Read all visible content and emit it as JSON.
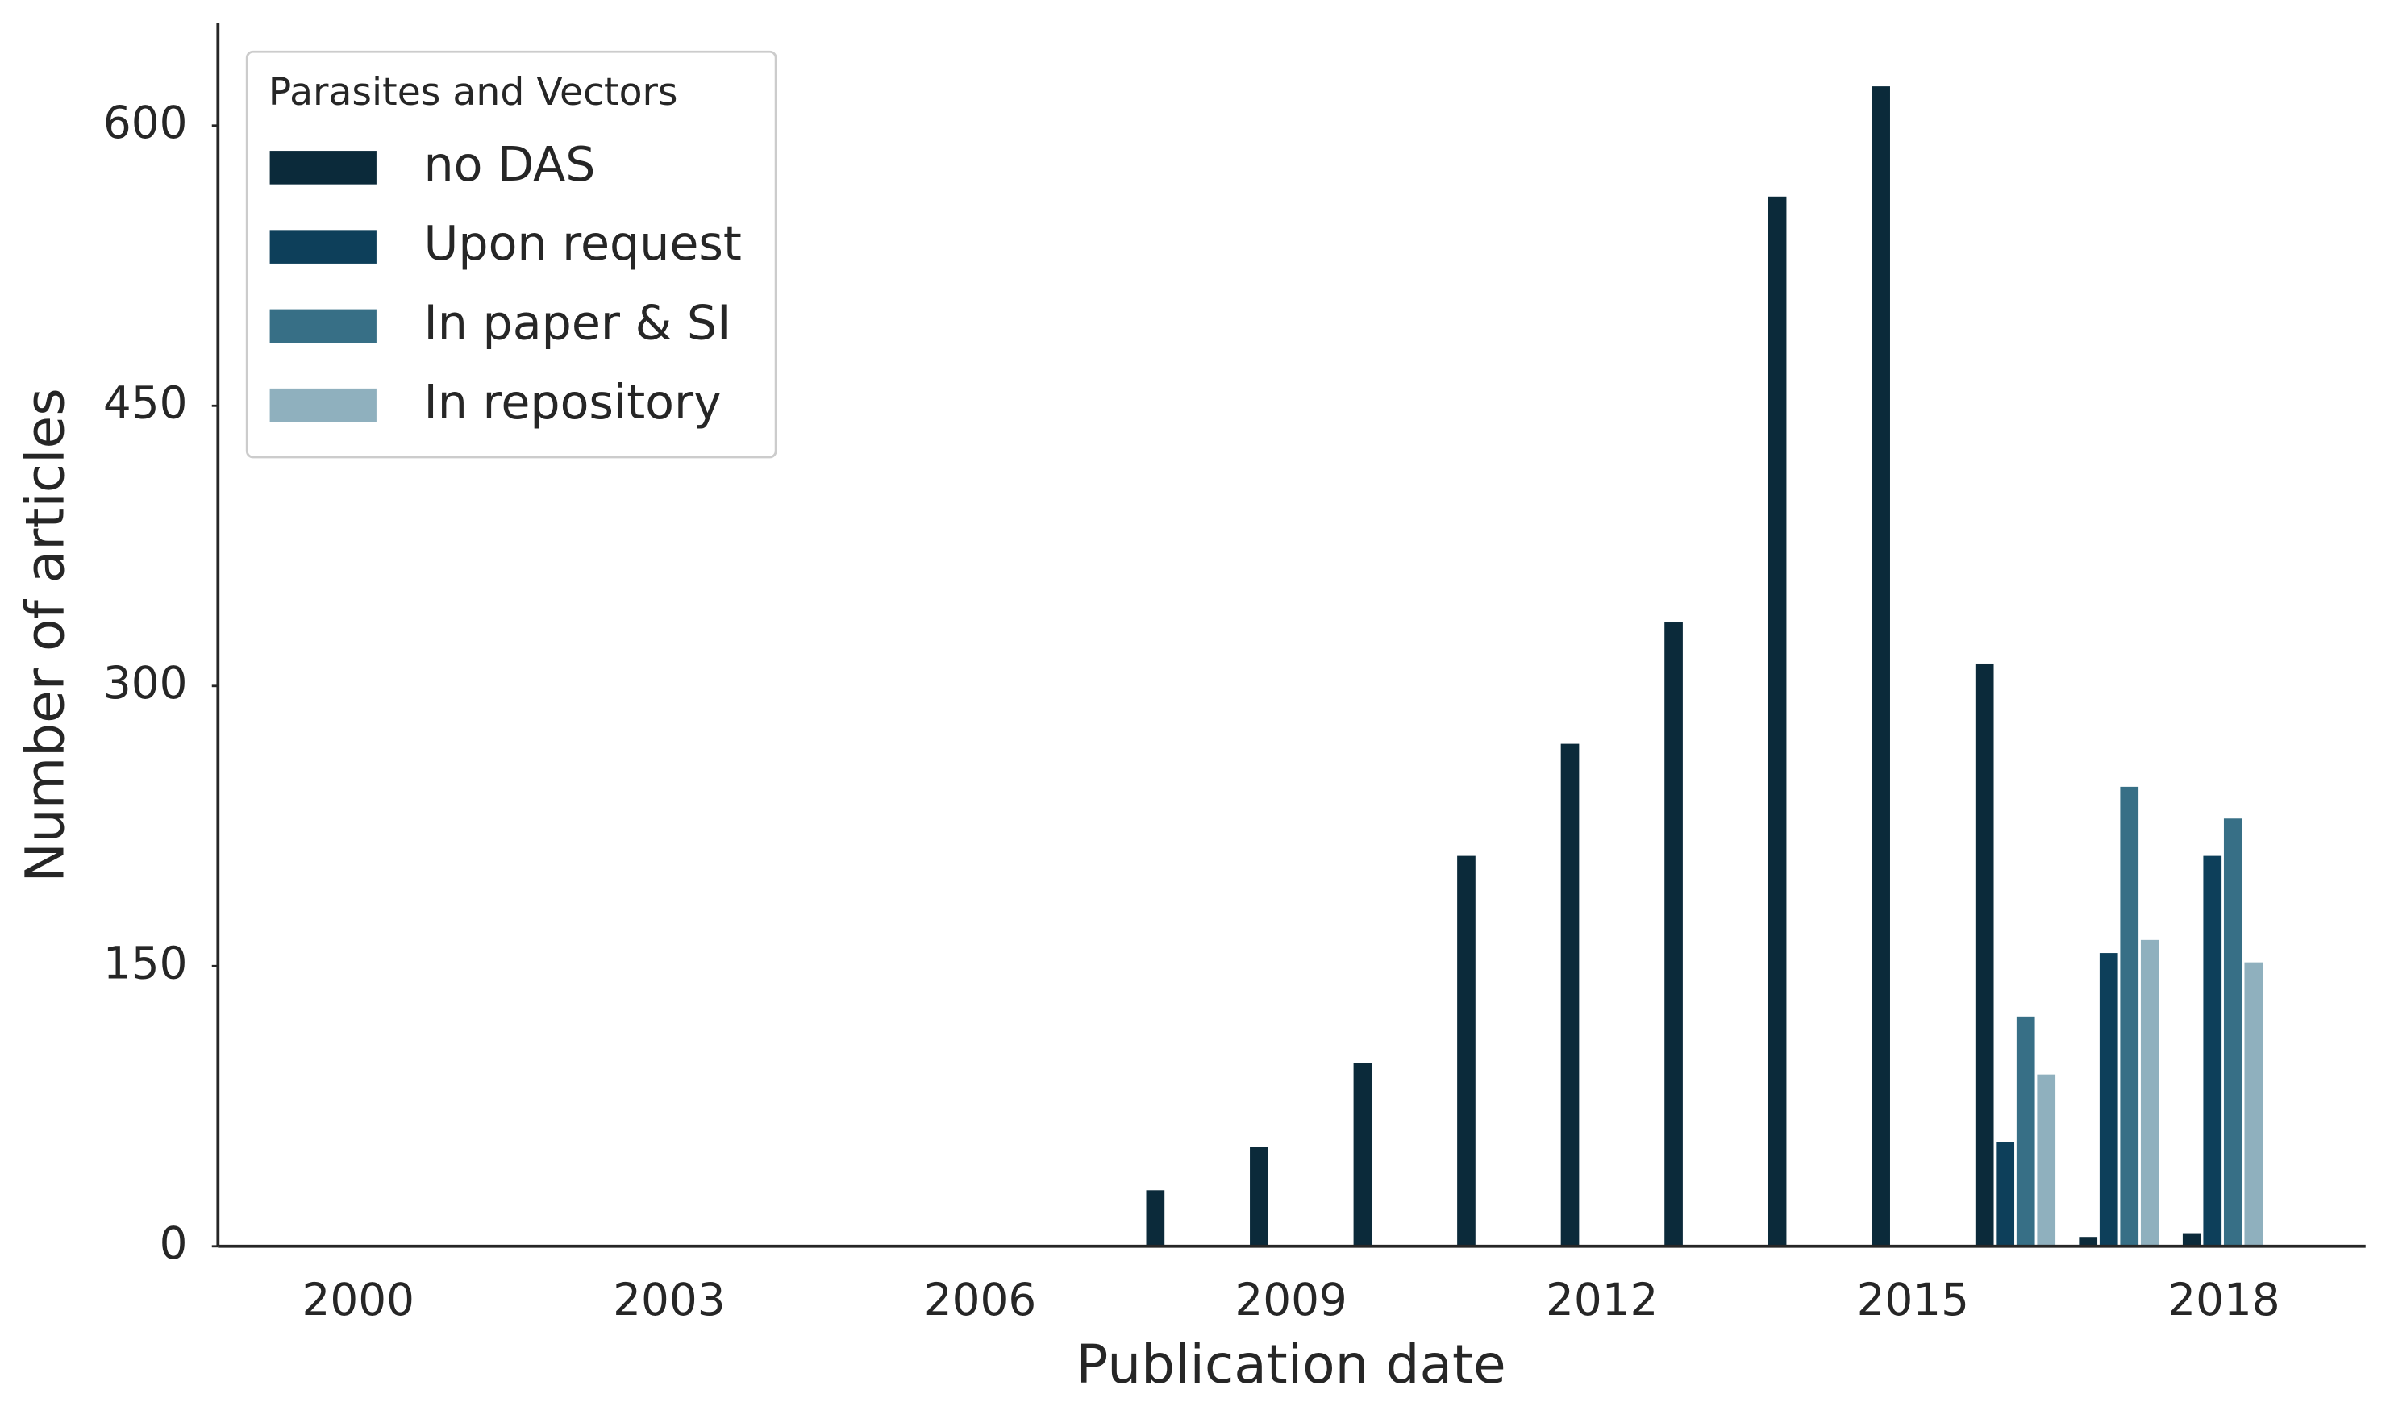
{
  "chart_data": {
    "type": "bar",
    "categories": [
      "2000",
      null,
      null,
      "2003",
      null,
      null,
      "2006",
      null,
      null,
      "2009",
      null,
      null,
      "2012",
      null,
      null,
      "2015",
      null,
      null,
      "2018"
    ],
    "series": [
      {
        "name": "no DAS",
        "color": "#0b2a3a",
        "values": [
          0,
          0,
          0,
          0,
          0,
          0,
          0,
          0,
          30,
          53,
          98,
          209,
          269,
          334,
          562,
          621,
          312,
          5,
          7
        ]
      },
      {
        "name": "Upon request",
        "color": "#0d3f5a",
        "values": [
          0,
          0,
          0,
          0,
          0,
          0,
          0,
          0,
          0,
          0,
          0,
          0,
          0,
          0,
          0,
          0,
          56,
          157,
          209
        ]
      },
      {
        "name": "In paper & SI",
        "color": "#376f86",
        "values": [
          0,
          0,
          0,
          0,
          0,
          0,
          0,
          0,
          0,
          0,
          0,
          0,
          0,
          0,
          0,
          0,
          123,
          246,
          229
        ]
      },
      {
        "name": "In repository",
        "color": "#8fb0be",
        "values": [
          0,
          0,
          0,
          0,
          0,
          0,
          0,
          0,
          0,
          0,
          0,
          0,
          0,
          0,
          0,
          0,
          92,
          164,
          152
        ]
      }
    ],
    "xlabel": "Publication date",
    "ylabel": "Number of articles",
    "legend_title": "Parasites and Vectors",
    "legend_position": "upper left",
    "ylim": [
      0,
      655
    ],
    "yticks": [
      0,
      150,
      300,
      450,
      600
    ],
    "grid": false
  }
}
